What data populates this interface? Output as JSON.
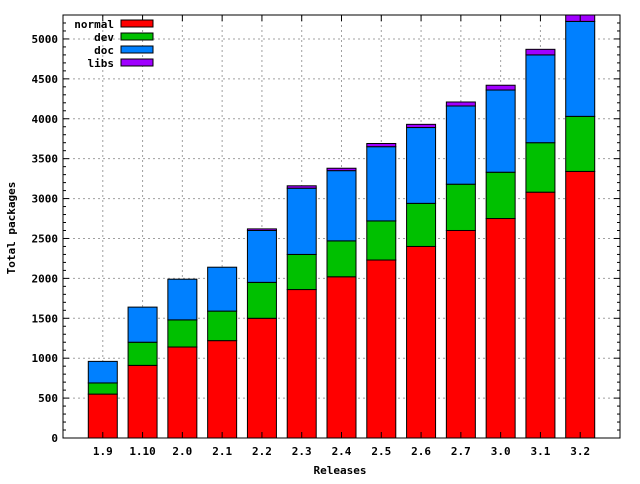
{
  "chart_data": {
    "type": "bar",
    "stacked": true,
    "categories": [
      "1.9",
      "1.10",
      "2.0",
      "2.1",
      "2.2",
      "2.3",
      "2.4",
      "2.5",
      "2.6",
      "2.7",
      "3.0",
      "3.1",
      "3.2"
    ],
    "series": [
      {
        "name": "normal",
        "color": "#ff0000",
        "values": [
          550,
          910,
          1140,
          1220,
          1500,
          1860,
          2020,
          2230,
          2400,
          2600,
          2750,
          3080,
          3340
        ]
      },
      {
        "name": "dev",
        "color": "#00c000",
        "values": [
          140,
          290,
          340,
          370,
          450,
          440,
          450,
          490,
          540,
          580,
          580,
          620,
          690
        ]
      },
      {
        "name": "doc",
        "color": "#0080ff",
        "values": [
          270,
          440,
          510,
          550,
          650,
          830,
          880,
          930,
          950,
          980,
          1030,
          1100,
          1190
        ]
      },
      {
        "name": "libs",
        "color": "#a000ff",
        "values": [
          0,
          0,
          0,
          0,
          20,
          30,
          30,
          40,
          40,
          50,
          60,
          70,
          80
        ]
      }
    ],
    "xlabel": "Releases",
    "ylabel": "Total packages",
    "ylim": [
      0,
      5300
    ],
    "yticks": [
      0,
      500,
      1000,
      1500,
      2000,
      2500,
      3000,
      3500,
      4000,
      4500,
      5000
    ],
    "grid": true,
    "legend_position": "top-left"
  }
}
